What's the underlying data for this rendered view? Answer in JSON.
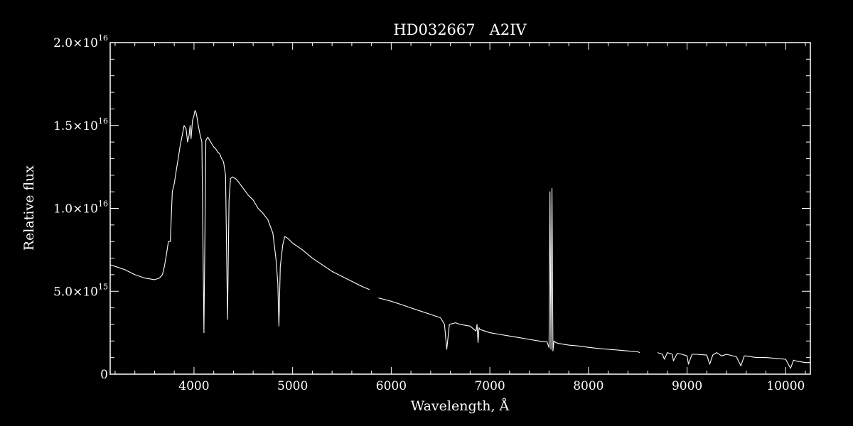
{
  "chart_data": {
    "type": "line",
    "title": "HD032667   A2IV",
    "xlabel": "Wavelength, Å",
    "ylabel": "Relative flux",
    "xlim": [
      3150,
      10250
    ],
    "ylim": [
      0,
      2e+16
    ],
    "x_ticks": [
      {
        "value": 4000,
        "label": "4000"
      },
      {
        "value": 5000,
        "label": "5000"
      },
      {
        "value": 6000,
        "label": "6000"
      },
      {
        "value": 7000,
        "label": "7000"
      },
      {
        "value": 8000,
        "label": "8000"
      },
      {
        "value": 9000,
        "label": "9000"
      },
      {
        "value": 10000,
        "label": "10000"
      }
    ],
    "y_ticks": [
      {
        "value": 0,
        "mantissa": "0",
        "exponent": ""
      },
      {
        "value": 5000000000000000.0,
        "mantissa": "5.0×10",
        "exponent": "15"
      },
      {
        "value": 1e+16,
        "mantissa": "1.0×10",
        "exponent": "16"
      },
      {
        "value": 1.5e+16,
        "mantissa": "1.5×10",
        "exponent": "16"
      },
      {
        "value": 2e+16,
        "mantissa": "2.0×10",
        "exponent": "16"
      }
    ],
    "grid": false,
    "line_color": "#ffffff",
    "background": "#000000",
    "series": [
      {
        "segments": [
          {
            "x": [
              3150,
              3200,
              3300,
              3400,
              3500,
              3600,
              3650,
              3680,
              3700,
              3720,
              3740,
              3760,
              3780,
              3800,
              3820,
              3840,
              3860,
              3880,
              3900,
              3920,
              3935,
              3950,
              3960,
              3970,
              3985,
              4000,
              4010,
              4020,
              4030,
              4040,
              4060,
              4080,
              4101,
              4120,
              4140,
              4160,
              4180,
              4200,
              4220,
              4240,
              4260,
              4280,
              4300,
              4320,
              4340,
              4355,
              4370,
              4390,
              4420,
              4450,
              4500,
              4550,
              4600,
              4650,
              4700,
              4750,
              4800,
              4830,
              4850,
              4861,
              4875,
              4900,
              4920,
              4950,
              5000,
              5100,
              5200,
              5300,
              5400,
              5500,
              5600,
              5700,
              5780
            ],
            "y": [
              6600000000000000.0,
              6500000000000000.0,
              6300000000000000.0,
              6000000000000000.0,
              5800000000000000.0,
              5700000000000000.0,
              5800000000000000.0,
              6000000000000000.0,
              6500000000000000.0,
              7200000000000000.0,
              8000000000000000.0,
              8000000000000000.0,
              1.1e+16,
              1.15e+16,
              1.23e+16,
              1.3e+16,
              1.38e+16,
              1.44e+16,
              1.5e+16,
              1.48e+16,
              1.4e+16,
              1.44e+16,
              1.5e+16,
              1.42e+16,
              1.53e+16,
              1.56e+16,
              1.59e+16,
              1.58e+16,
              1.55e+16,
              1.51e+16,
              1.45e+16,
              1.4e+16,
              2500000000000000.0,
              1.41e+16,
              1.43e+16,
              1.41e+16,
              1.39e+16,
              1.37e+16,
              1.36e+16,
              1.34e+16,
              1.33e+16,
              1.3e+16,
              1.28e+16,
              1.2e+16,
              3300000000000000.0,
              1.05e+16,
              1.18e+16,
              1.19e+16,
              1.18e+16,
              1.16e+16,
              1.12e+16,
              1.08e+16,
              1.05e+16,
              1e+16,
              9700000000000000.0,
              9300000000000000.0,
              8500000000000000.0,
              7000000000000000.0,
              5500000000000000.0,
              2900000000000000.0,
              6500000000000000.0,
              7800000000000000.0,
              8300000000000000.0,
              8200000000000000.0,
              7900000000000000.0,
              7500000000000000.0,
              7000000000000000.0,
              6600000000000000.0,
              6200000000000000.0,
              5900000000000000.0,
              5600000000000000.0,
              5300000000000000.0,
              5100000000000000.0
            ]
          },
          {
            "x": [
              5870,
              6000,
              6100,
              6200,
              6300,
              6400,
              6500,
              6540,
              6563,
              6590,
              6650,
              6700,
              6800,
              6860,
              6870,
              6880,
              6890,
              6900,
              6950,
              7000,
              7100,
              7200,
              7300,
              7400,
              7500,
              7580,
              7600,
              7610,
              7620,
              7630,
              7640,
              7650,
              7670,
              7700,
              7800,
              7900,
              8000,
              8100,
              8200,
              8300,
              8400,
              8500,
              8520
            ],
            "y": [
              4600000000000000.0,
              4400000000000000.0,
              4200000000000000.0,
              4000000000000000.0,
              3800000000000000.0,
              3600000000000000.0,
              3400000000000000.0,
              3000000000000000.0,
              1500000000000000.0,
              3000000000000000.0,
              3100000000000000.0,
              3000000000000000.0,
              2900000000000000.0,
              2600000000000000.0,
              3000000000000000.0,
              1900000000000000.0,
              2800000000000000.0,
              2700000000000000.0,
              2600000000000000.0,
              2500000000000000.0,
              2400000000000000.0,
              2300000000000000.0,
              2200000000000000.0,
              2100000000000000.0,
              2000000000000000.0,
              1950000000000000.0,
              1600000000000000.0,
              1.1e+16,
              1500000000000000.0,
              1.12e+16,
              1400000000000000.0,
              2000000000000000.0,
              1900000000000000.0,
              1850000000000000.0,
              1750000000000000.0,
              1700000000000000.0,
              1620000000000000.0,
              1550000000000000.0,
              1500000000000000.0,
              1450000000000000.0,
              1400000000000000.0,
              1350000000000000.0,
              1300000000000000.0
            ]
          },
          {
            "x": [
              8700,
              8750,
              8770,
              8800,
              8850,
              8862,
              8900,
              8950,
              9000,
              9014,
              9050,
              9100,
              9200,
              9229,
              9260,
              9300,
              9350,
              9400,
              9500,
              9546,
              9580,
              9600,
              9700,
              9800,
              9900,
              10000,
              10049,
              10080,
              10100,
              10200,
              10250
            ],
            "y": [
              1300000000000000.0,
              1200000000000000.0,
              900000000000000.0,
              1300000000000000.0,
              1200000000000000.0,
              800000000000000.0,
              1250000000000000.0,
              1200000000000000.0,
              1100000000000000.0,
              600000000000000.0,
              1200000000000000.0,
              1200000000000000.0,
              1150000000000000.0,
              600000000000000.0,
              1150000000000000.0,
              1300000000000000.0,
              1100000000000000.0,
              1200000000000000.0,
              1050000000000000.0,
              500000000000000.0,
              1100000000000000.0,
              1100000000000000.0,
              1000000000000000.0,
              1000000000000000.0,
              950000000000000.0,
              900000000000000.0,
              350000000000000.0,
              850000000000000.0,
              800000000000000.0,
              700000000000000.0,
              700000000000000.0
            ]
          }
        ]
      }
    ]
  }
}
